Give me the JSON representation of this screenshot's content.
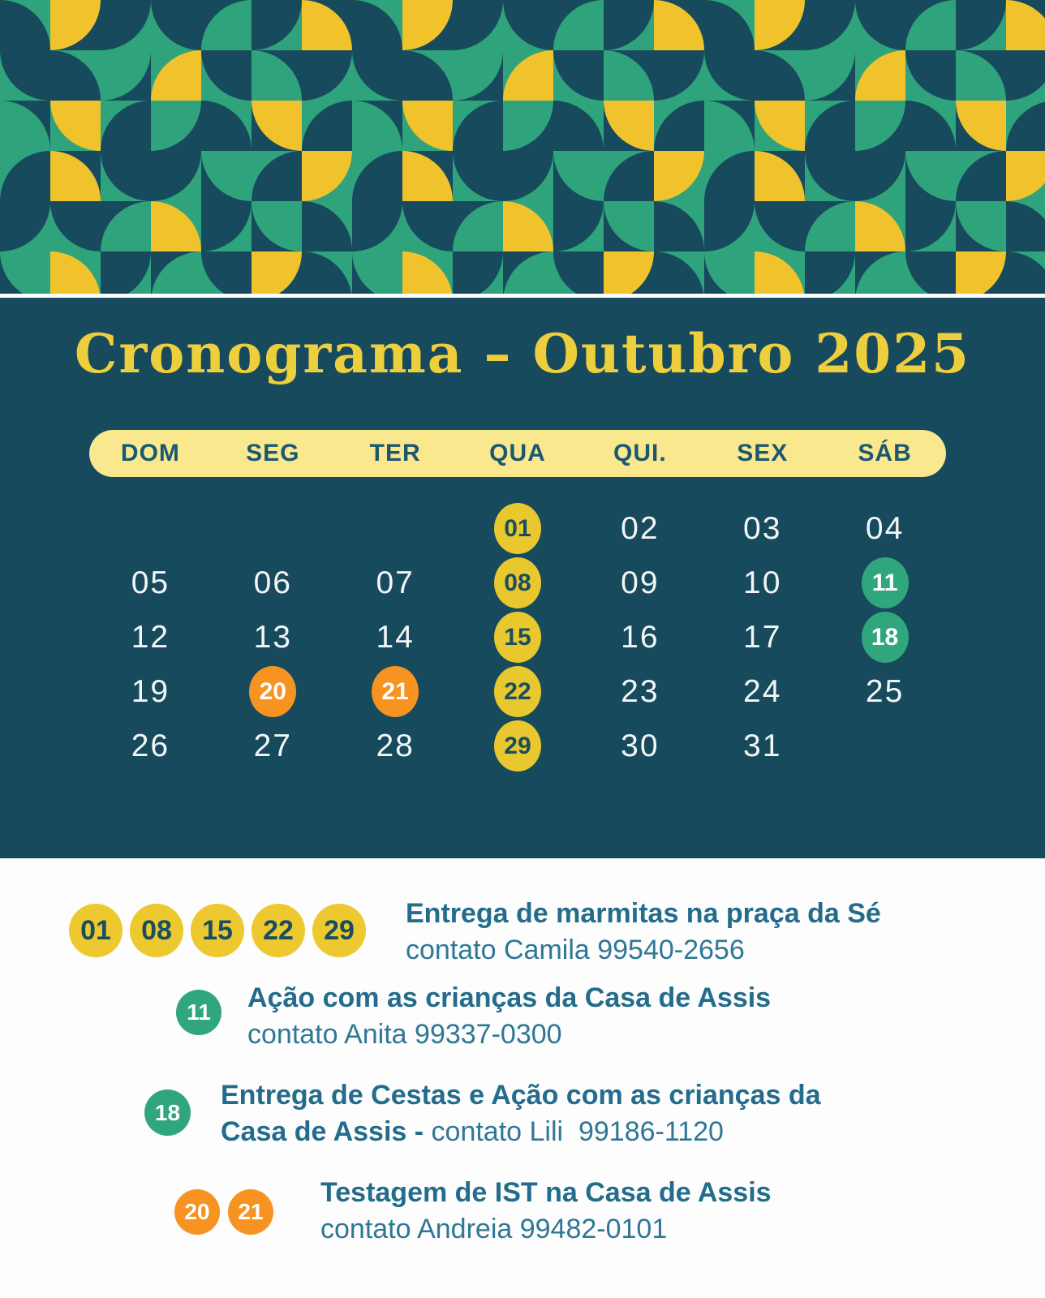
{
  "title": "Cronograma – Outubro 2025",
  "colors": {
    "panel_bg": "#164A5C",
    "pattern_green": "#2FA37B",
    "pattern_yellow": "#F0C32D",
    "pattern_dark": "#164A5C",
    "header_pill_bg": "#FAE88F",
    "header_text": "#1A5870",
    "title_yellow": "#EDCE3C",
    "day_number_white": "#F3F6F6",
    "highlight_yellow": "#E9C72E",
    "highlight_green": "#30A67D",
    "highlight_orange": "#F79320",
    "legend_title_teal": "#236C8B",
    "legend_body_teal": "#2E7795",
    "page_bg": "#FDFDFD"
  },
  "weekdays": [
    "DOM",
    "SEG",
    "TER",
    "QUA",
    "QUI.",
    "SEX",
    "SÁB"
  ],
  "calendar": {
    "weeks": [
      [
        null,
        null,
        null,
        {
          "d": "01",
          "hl": "yellow"
        },
        {
          "d": "02"
        },
        {
          "d": "03"
        },
        {
          "d": "04"
        }
      ],
      [
        {
          "d": "05"
        },
        {
          "d": "06"
        },
        {
          "d": "07"
        },
        {
          "d": "08",
          "hl": "yellow"
        },
        {
          "d": "09"
        },
        {
          "d": "10"
        },
        {
          "d": "11",
          "hl": "green"
        }
      ],
      [
        {
          "d": "12"
        },
        {
          "d": "13"
        },
        {
          "d": "14"
        },
        {
          "d": "15",
          "hl": "yellow"
        },
        {
          "d": "16"
        },
        {
          "d": "17"
        },
        {
          "d": "18",
          "hl": "green"
        }
      ],
      [
        {
          "d": "19"
        },
        {
          "d": "20",
          "hl": "orange"
        },
        {
          "d": "21",
          "hl": "orange"
        },
        {
          "d": "22",
          "hl": "yellow"
        },
        {
          "d": "23"
        },
        {
          "d": "24"
        },
        {
          "d": "25"
        }
      ],
      [
        {
          "d": "26"
        },
        {
          "d": "27"
        },
        {
          "d": "28"
        },
        {
          "d": "29",
          "hl": "yellow"
        },
        {
          "d": "30"
        },
        {
          "d": "31"
        },
        null
      ]
    ]
  },
  "legend": {
    "rows": [
      {
        "dates": [
          "01",
          "08",
          "15",
          "22",
          "29"
        ],
        "color": "yellow",
        "title": "Entrega de marmitas na praça da Sé",
        "subtitle": "contato Camila 99540-2656"
      },
      {
        "dates": [
          "11"
        ],
        "color": "green",
        "title": "Ação com as crianças da Casa de Assis",
        "subtitle": "contato Anita 99337-0300"
      },
      {
        "dates": [
          "18"
        ],
        "color": "green",
        "title": "Entrega de Cestas e Ação com as crianças da\nCasa de Assis - ",
        "subtitle_inline": "contato Lili  99186-1120"
      },
      {
        "dates": [
          "20",
          "21"
        ],
        "color": "orange",
        "title": "Testagem de IST na Casa de Assis",
        "subtitle": "contato Andreia 99482-0101"
      }
    ]
  },
  "pattern": {
    "tile": 62,
    "cols": 21,
    "rows": 6,
    "map": [
      [
        "g,d,bl",
        "d,y,tl",
        "g,d,tl",
        "g,d,tr",
        "d,g,br",
        "g,d,tl",
        "d,y,bl",
        "g,d,bl",
        "d,y,tl",
        "g,d,tl",
        "g,d,tr",
        "d,g,br",
        "g,d,tl",
        "d,y,bl",
        "g,d,bl",
        "d,y,tl",
        "g,d,tl",
        "g,d,tr",
        "d,g,br",
        "g,d,tl",
        "d,y,bl"
      ],
      [
        "g,d,tr",
        "g,d,bl",
        "d,g,tl",
        "g,y,br",
        "g,d,tr",
        "d,g,bl",
        "g,d,tl",
        "g,d,tr",
        "g,d,bl",
        "d,g,tl",
        "g,y,br",
        "g,d,tr",
        "d,g,bl",
        "g,d,tl",
        "g,d,tr",
        "g,d,bl",
        "d,g,tl",
        "g,y,br",
        "g,d,tr",
        "d,g,bl",
        "g,d,tl"
      ],
      [
        "d,g,bl",
        "g,y,tr",
        "g,d,br",
        "d,g,tl",
        "g,d,bl",
        "d,y,tr",
        "g,d,br",
        "d,g,bl",
        "g,y,tr",
        "g,d,br",
        "d,g,tl",
        "g,d,bl",
        "d,y,tr",
        "g,d,br",
        "d,g,bl",
        "g,y,tr",
        "g,d,br",
        "d,g,tl",
        "g,d,bl",
        "d,y,tr",
        "g,d,br"
      ],
      [
        "g,d,br",
        "d,y,bl",
        "g,d,tr",
        "g,d,tl",
        "d,g,tr",
        "g,d,br",
        "g,y,tl",
        "g,d,br",
        "d,y,bl",
        "g,d,tr",
        "g,d,tl",
        "d,g,tr",
        "g,d,br",
        "g,y,tl",
        "g,d,br",
        "d,y,bl",
        "g,d,tr",
        "g,d,tl",
        "d,g,tr",
        "g,d,br",
        "g,y,tl"
      ],
      [
        "g,d,tl",
        "g,d,tr",
        "d,g,br",
        "g,y,bl",
        "g,d,tl",
        "d,g,tr",
        "g,d,bl",
        "g,d,tl",
        "g,d,tr",
        "d,g,br",
        "g,y,bl",
        "g,d,tl",
        "d,g,tr",
        "g,d,bl",
        "g,d,tl",
        "g,d,tr",
        "d,g,br",
        "g,y,bl",
        "g,d,tl",
        "d,g,tr",
        "g,d,bl"
      ],
      [
        "d,g,tr",
        "g,y,bl",
        "g,d,tl",
        "d,g,br",
        "g,d,tr",
        "d,y,tl",
        "g,d,bl",
        "d,g,tr",
        "g,y,bl",
        "g,d,tl",
        "d,g,br",
        "g,d,tr",
        "d,y,tl",
        "g,d,bl",
        "d,g,tr",
        "g,y,bl",
        "g,d,tl",
        "d,g,br",
        "g,d,tr",
        "d,y,tl",
        "g,d,bl"
      ]
    ]
  }
}
